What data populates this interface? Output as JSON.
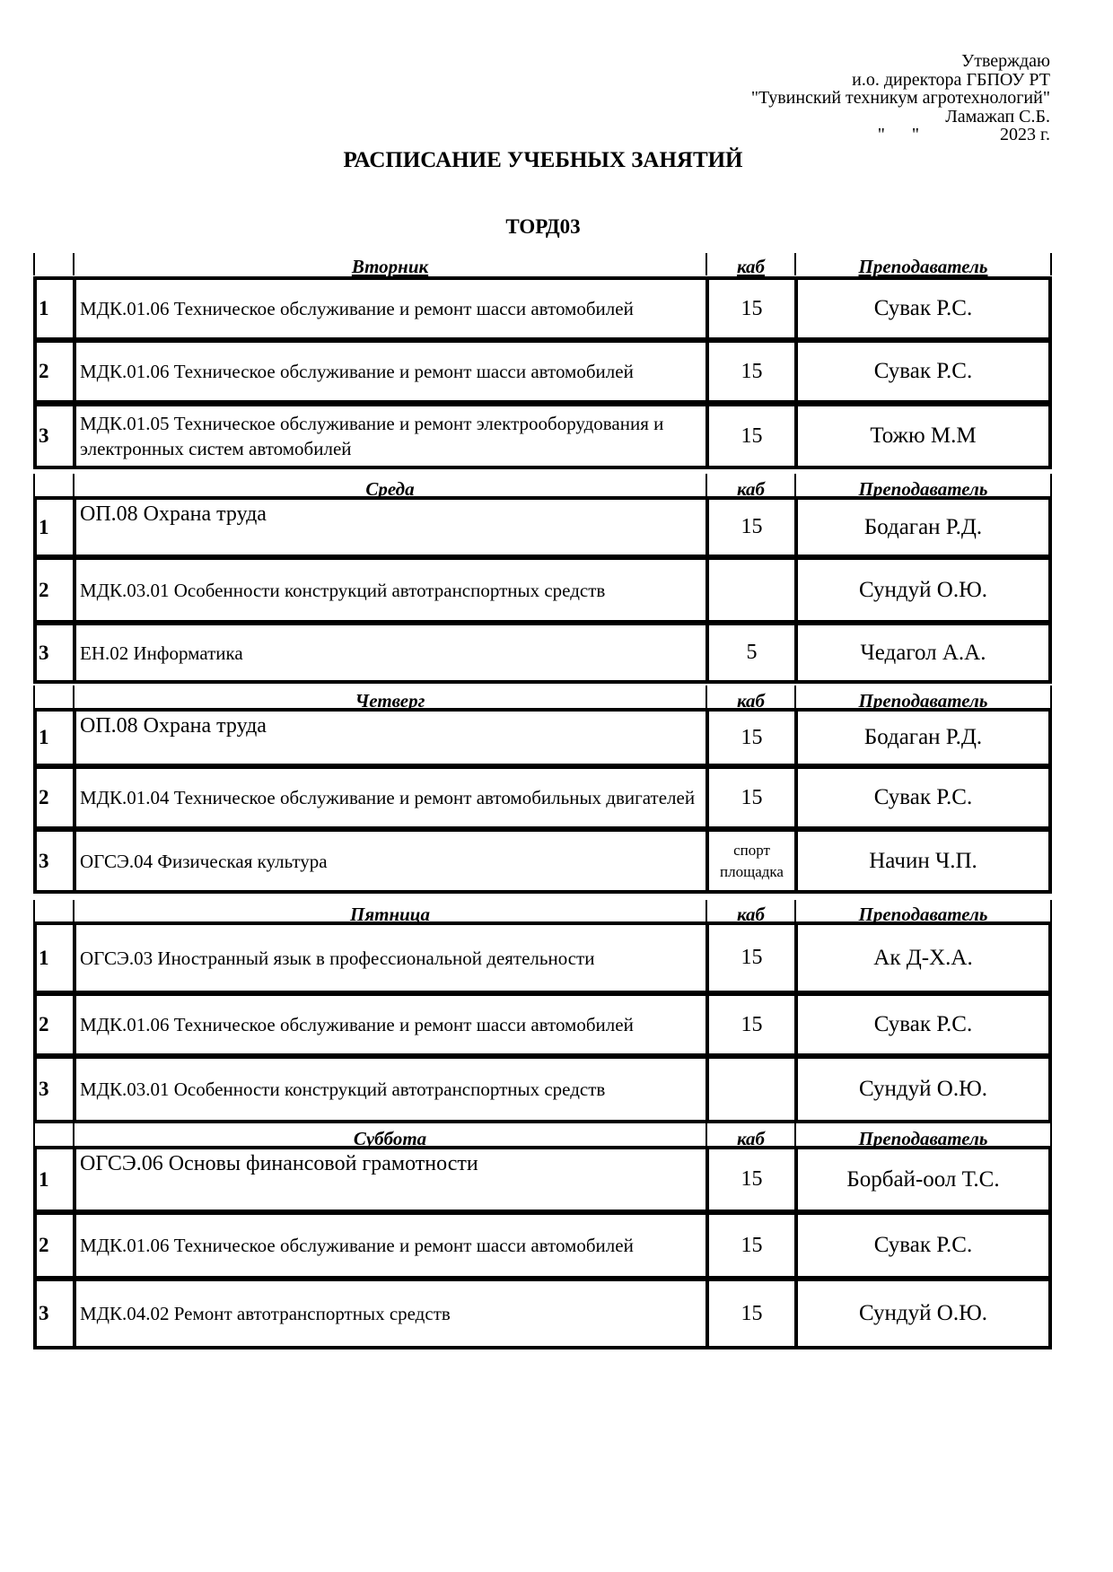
{
  "approval": {
    "line1": "Утверждаю",
    "line2": "и.о. директора ГБПОУ РТ",
    "line3": "\"Тувинский техникум агротехнологий\"",
    "line4": "Ламажап С.Б.",
    "line5": "\"      \"                  2023 г."
  },
  "title": "РАСПИСАНИЕ УЧЕБНЫХ ЗАНЯТИЙ",
  "group": "ТОРД03",
  "room_header": "каб",
  "teacher_header": "Преподаватель",
  "days": [
    {
      "name": "Вторник",
      "lessons": [
        {
          "num": "1",
          "subject": "МДК.01.06 Техническое обслуживание и ремонт шасси автомобилей",
          "room": "15",
          "teacher": "Сувак Р.С."
        },
        {
          "num": "2",
          "subject": "МДК.01.06 Техническое обслуживание и ремонт шасси автомобилей",
          "room": "15",
          "teacher": "Сувак Р.С."
        },
        {
          "num": "3",
          "subject": "МДК.01.05 Техническое обслуживание и ремонт электрооборудования и электронных систем автомобилей",
          "room": "15",
          "teacher": "Тожю М.М"
        }
      ]
    },
    {
      "name": "Среда",
      "lessons": [
        {
          "num": "1",
          "subject": "ОП.08 Охрана труда",
          "room": "15",
          "teacher": "Бодаган Р.Д.",
          "big": true
        },
        {
          "num": "2",
          "subject": "МДК.03.01 Особенности конструкций автотранспортных средств",
          "room": "",
          "teacher": "Сундуй О.Ю."
        },
        {
          "num": "3",
          "subject": "ЕН.02 Информатика",
          "room": "5",
          "teacher": "Чедагол А.А."
        }
      ]
    },
    {
      "name": "Четверг",
      "lessons": [
        {
          "num": "1",
          "subject": "ОП.08 Охрана труда",
          "room": "15",
          "teacher": "Бодаган Р.Д.",
          "big": true
        },
        {
          "num": "2",
          "subject": "МДК.01.04 Техническое обслуживание и ремонт автомобильных двигателей",
          "room": "15",
          "teacher": "Сувак Р.С."
        },
        {
          "num": "3",
          "subject": "ОГСЭ.04  Физическая культура",
          "room": "спорт площадка",
          "teacher": "Начин Ч.П.",
          "smallroom": true
        }
      ]
    },
    {
      "name": "Пятница",
      "lessons": [
        {
          "num": "1",
          "subject": "ОГСЭ.03 Иностранный язык в профессиональной деятельности",
          "room": "15",
          "teacher": "Ак Д-Х.А."
        },
        {
          "num": "2",
          "subject": "МДК.01.06 Техническое обслуживание и ремонт шасси автомобилей",
          "room": "15",
          "teacher": "Сувак Р.С."
        },
        {
          "num": "3",
          "subject": "МДК.03.01 Особенности конструкций автотранспортных средств",
          "room": "",
          "teacher": "Сундуй О.Ю."
        }
      ]
    },
    {
      "name": "Суббота",
      "lessons": [
        {
          "num": "1",
          "subject": "ОГСЭ.06 Основы финансовой грамотности",
          "room": "15",
          "teacher": "Борбай-оол Т.С.",
          "big": true
        },
        {
          "num": "2",
          "subject": "МДК.01.06 Техническое обслуживание и ремонт шасси автомобилей",
          "room": "15",
          "teacher": "Сувак Р.С."
        },
        {
          "num": "3",
          "subject": "МДК.04.02 Ремонт автотранспортных средств",
          "room": "15",
          "teacher": "Сундуй О.Ю."
        }
      ]
    }
  ]
}
